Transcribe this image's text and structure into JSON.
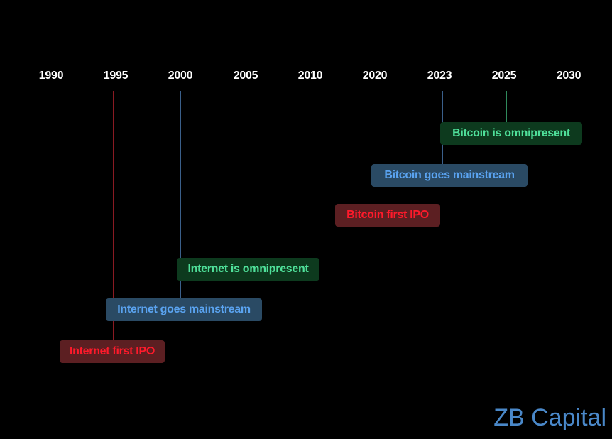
{
  "years": [
    "1990",
    "1995",
    "2000",
    "2005",
    "2010",
    "2020",
    "2023",
    "2025",
    "2030"
  ],
  "events": [
    {
      "id": "internet-first-ipo",
      "label": "Internet first IPO",
      "year": "1995",
      "kind": "red"
    },
    {
      "id": "internet-goes-mainstream",
      "label": "Internet goes mainstream",
      "year": "2000",
      "kind": "blue"
    },
    {
      "id": "internet-is-omnipresent",
      "label": "Internet is omnipresent",
      "year": "2005",
      "kind": "green"
    },
    {
      "id": "bitcoin-first-ipo",
      "label": "Bitcoin first IPO",
      "year": "2020",
      "kind": "red"
    },
    {
      "id": "bitcoin-goes-mainstream",
      "label": "Bitcoin goes mainstream",
      "year": "2023",
      "kind": "blue"
    },
    {
      "id": "bitcoin-is-omnipresent",
      "label": "Bitcoin is omnipresent",
      "year": "2025",
      "kind": "green"
    }
  ],
  "brand": "ZB Capital",
  "colors": {
    "background": "#000000",
    "year_text": "#ffffff",
    "red_text": "#ff1a2b",
    "red_box": "#5c1f22",
    "red_line": "#8a1a22",
    "blue_text": "#5aa3f0",
    "blue_box": "#2a4a64",
    "blue_line": "#3a5f8a",
    "green_text": "#4fe09a",
    "green_box": "#0d3a1e",
    "green_line": "#2f8a5c",
    "brand": "#4a88c9"
  }
}
